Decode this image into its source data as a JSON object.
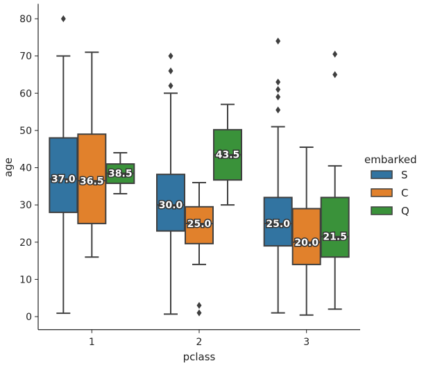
{
  "chart_data": {
    "type": "box",
    "xlabel": "pclass",
    "ylabel": "age",
    "categories": [
      "1",
      "2",
      "3"
    ],
    "ylim": [
      -3.5,
      84
    ],
    "yticks": [
      0,
      10,
      20,
      30,
      40,
      50,
      60,
      70,
      80
    ],
    "legend": {
      "title": "embarked",
      "placement": "right"
    },
    "series": [
      {
        "name": "S",
        "color": "#3274a1",
        "boxes": [
          {
            "whisker_low": 0.92,
            "q1": 28,
            "median": 37.0,
            "q3": 48,
            "whisker_high": 70,
            "outliers": [
              80
            ],
            "label": "37.0"
          },
          {
            "whisker_low": 0.67,
            "q1": 23,
            "median": 30.0,
            "q3": 38.2,
            "whisker_high": 60,
            "outliers": [
              62,
              66,
              70
            ],
            "label": "30.0"
          },
          {
            "whisker_low": 1,
            "q1": 19,
            "median": 25.0,
            "q3": 32,
            "whisker_high": 51,
            "outliers": [
              55.5,
              59,
              61,
              63,
              74
            ],
            "label": "25.0"
          }
        ]
      },
      {
        "name": "C",
        "color": "#e1812c",
        "boxes": [
          {
            "whisker_low": 16,
            "q1": 25,
            "median": 36.5,
            "q3": 49,
            "whisker_high": 71,
            "outliers": [],
            "label": "36.5"
          },
          {
            "whisker_low": 14,
            "q1": 19.6,
            "median": 25.0,
            "q3": 29.5,
            "whisker_high": 36,
            "outliers": [
              1,
              3
            ],
            "label": "25.0"
          },
          {
            "whisker_low": 0.42,
            "q1": 14,
            "median": 20.0,
            "q3": 29,
            "whisker_high": 45.5,
            "outliers": [],
            "label": "20.0"
          }
        ]
      },
      {
        "name": "Q",
        "color": "#3a923a",
        "boxes": [
          {
            "whisker_low": 33,
            "q1": 35.8,
            "median": 38.5,
            "q3": 41,
            "whisker_high": 44,
            "outliers": [],
            "label": "38.5"
          },
          {
            "whisker_low": 30,
            "q1": 36.7,
            "median": 43.5,
            "q3": 50.2,
            "whisker_high": 57,
            "outliers": [],
            "label": "43.5"
          },
          {
            "whisker_low": 2,
            "q1": 16,
            "median": 21.5,
            "q3": 32,
            "whisker_high": 40.5,
            "outliers": [
              65,
              70.5
            ],
            "label": "21.5"
          }
        ]
      }
    ]
  }
}
